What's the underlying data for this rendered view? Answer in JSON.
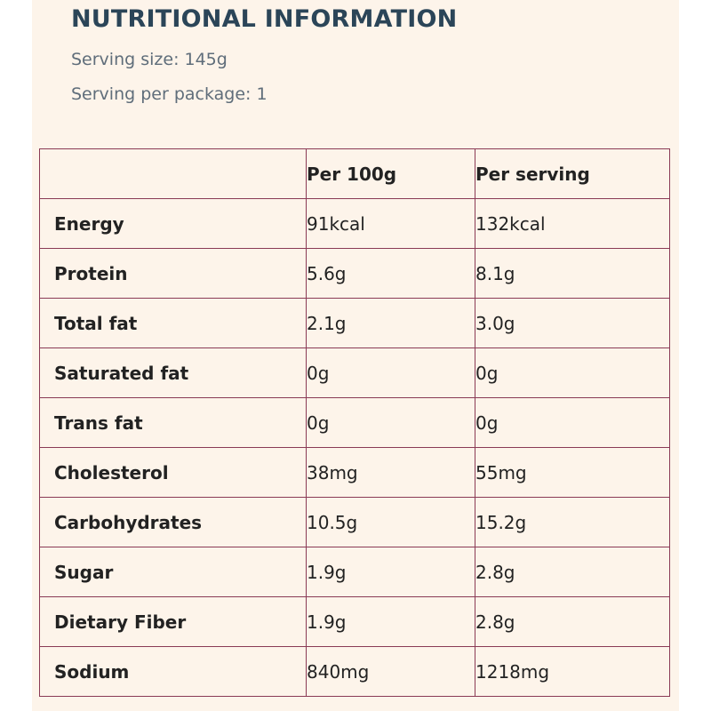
{
  "title": "NUTRITIONAL INFORMATION",
  "serving_size": "Serving size: 145g",
  "servings_per_package": "Serving per package: 1",
  "table": {
    "headers": [
      "",
      "Per 100g",
      "Per serving"
    ],
    "rows": [
      {
        "name": "Energy",
        "per_100g": "91kcal",
        "per_serving": "132kcal"
      },
      {
        "name": "Protein",
        "per_100g": "5.6g",
        "per_serving": "8.1g"
      },
      {
        "name": "Total fat",
        "per_100g": "2.1g",
        "per_serving": "3.0g"
      },
      {
        "name": "Saturated fat",
        "per_100g": "0g",
        "per_serving": "0g"
      },
      {
        "name": "Trans fat",
        "per_100g": "0g",
        "per_serving": "0g"
      },
      {
        "name": "Cholesterol",
        "per_100g": "38mg",
        "per_serving": "55mg"
      },
      {
        "name": "Carbohydrates",
        "per_100g": "10.5g",
        "per_serving": "15.2g"
      },
      {
        "name": "Sugar",
        "per_100g": "1.9g",
        "per_serving": "2.8g"
      },
      {
        "name": "Dietary Fiber",
        "per_100g": "1.9g",
        "per_serving": "2.8g"
      },
      {
        "name": "Sodium",
        "per_100g": "840mg",
        "per_serving": "1218mg"
      }
    ]
  }
}
